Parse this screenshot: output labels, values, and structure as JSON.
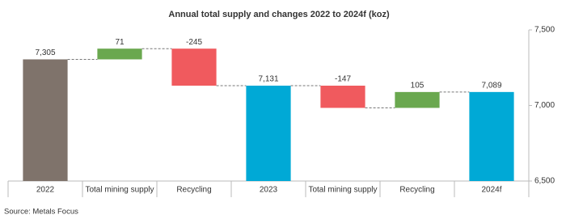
{
  "chart_data": {
    "type": "waterfall",
    "title": "Annual total supply and changes 2022 to 2024f (koz)",
    "source": "Source: Metals Focus",
    "categories": [
      "2022",
      "Total mining supply",
      "Recycling",
      "2023",
      "Total mining supply",
      "Recycling",
      "2024f"
    ],
    "values": [
      7305,
      71,
      -245,
      7131,
      -147,
      105,
      7089
    ],
    "value_labels": [
      "7,305",
      "71",
      "-245",
      "7,131",
      "-147",
      "105",
      "7,089"
    ],
    "measure": [
      "absolute",
      "relative",
      "relative",
      "absolute",
      "relative",
      "relative",
      "absolute"
    ],
    "colors": [
      "#7f736b",
      "#6aa84f",
      "#f05a5e",
      "#00a9d6",
      "#f05a5e",
      "#6aa84f",
      "#00a9d6"
    ],
    "ylim": [
      6500,
      7500
    ],
    "yticks": [
      {
        "value": 6500,
        "label": "6,500"
      },
      {
        "value": 7000,
        "label": "7,000"
      },
      {
        "value": 7500,
        "label": "7,500"
      }
    ],
    "y_axis_side": "right"
  }
}
